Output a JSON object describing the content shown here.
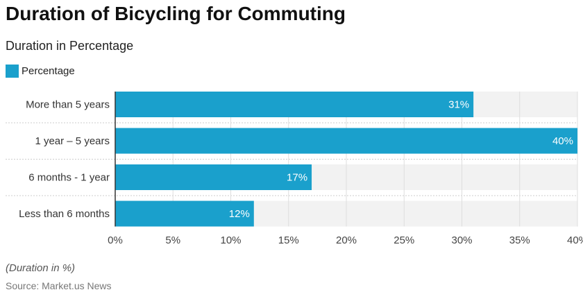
{
  "chart_data": {
    "type": "bar",
    "orientation": "horizontal",
    "title": "Duration of Bicycling for Commuting",
    "subtitle": "Duration in Percentage",
    "categories": [
      "More than 5 years",
      "1 year – 5 years",
      "6 months - 1 year",
      "Less than 6 months"
    ],
    "series": [
      {
        "name": "Percentage",
        "values": [
          31,
          40,
          17,
          12
        ]
      }
    ],
    "data_labels": [
      "31%",
      "40%",
      "17%",
      "12%"
    ],
    "xlim": [
      0,
      40
    ],
    "xticks": [
      "0%",
      "5%",
      "10%",
      "15%",
      "20%",
      "25%",
      "30%",
      "35%",
      "40%"
    ],
    "grid": true,
    "legend": "top-left",
    "note": "(Duration in %)",
    "source": "Source: Market.us News",
    "colors": {
      "bar": "#1aa0cc",
      "band": "#f2f2f2",
      "grid": "#dddddd"
    }
  }
}
